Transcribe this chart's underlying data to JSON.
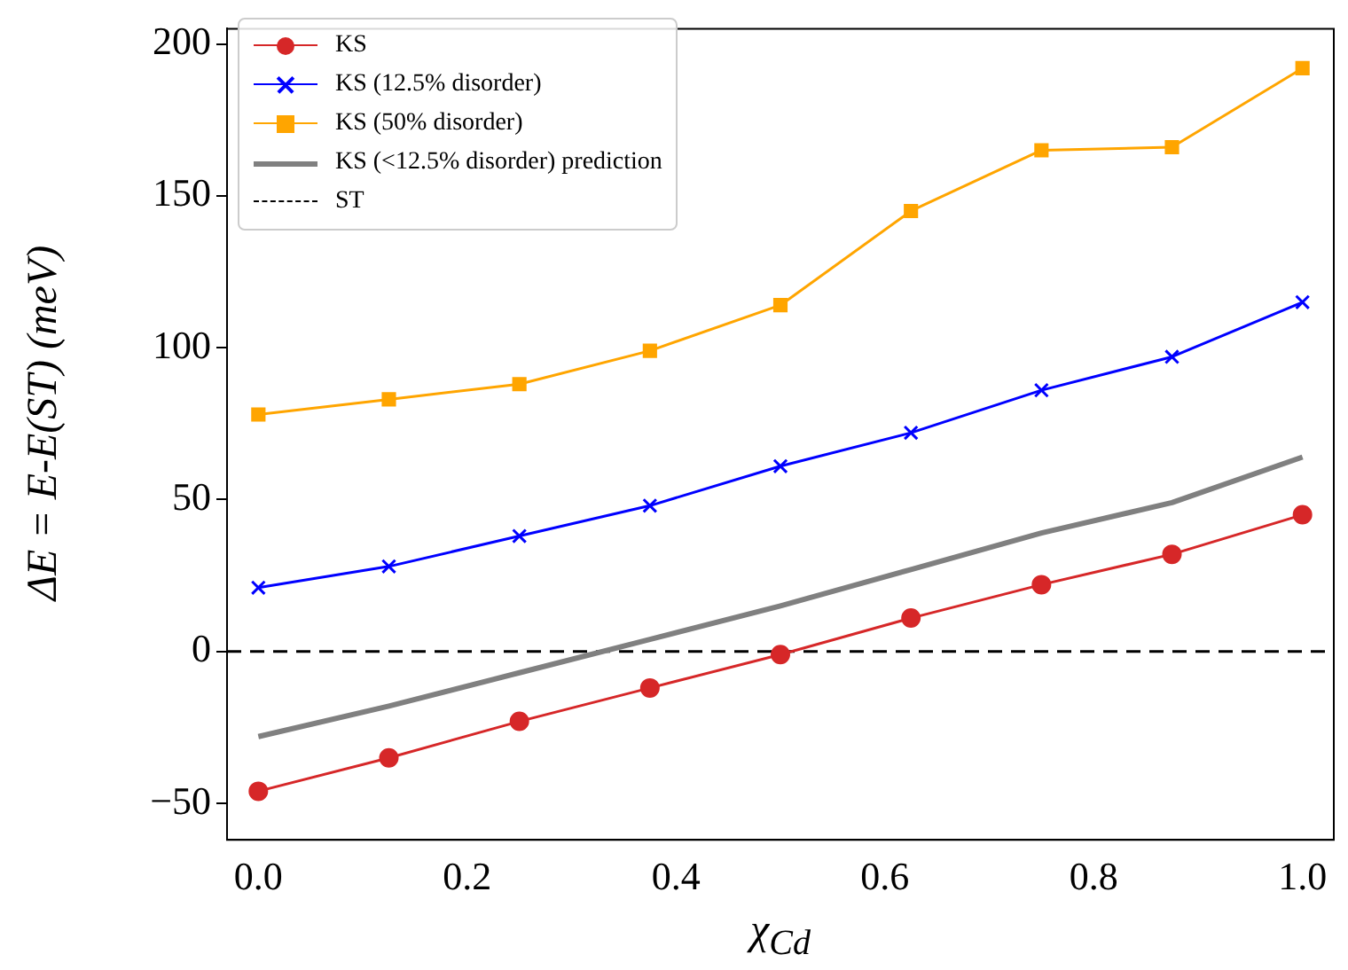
{
  "chart_data": {
    "type": "line",
    "xlabel": "χ$_{Cd}$",
    "ylabel": "ΔE = E-E(ST) (meV)",
    "x": [
      0,
      0.125,
      0.25,
      0.375,
      0.5,
      0.625,
      0.75,
      0.875,
      1.0
    ],
    "series": [
      {
        "name": "KS",
        "color": "#d62728",
        "marker": "circle",
        "values": [
          -46,
          -35,
          -23,
          -12,
          -1,
          11,
          22,
          32,
          45
        ]
      },
      {
        "name": "KS (12.5% disorder)",
        "color": "#0000ff",
        "marker": "cross",
        "values": [
          21,
          28,
          38,
          48,
          61,
          72,
          86,
          97,
          115
        ]
      },
      {
        "name": "KS (50% disorder)",
        "color": "#ffa500",
        "marker": "square",
        "values": [
          78,
          83,
          88,
          99,
          114,
          145,
          165,
          166,
          192
        ]
      },
      {
        "name": "KS (<12.5% disorder) prediction",
        "color": "#808080",
        "marker": "none",
        "values": [
          -28,
          -18,
          -7,
          4,
          15,
          27,
          39,
          49,
          64
        ]
      },
      {
        "name": "ST",
        "color": "#000000",
        "marker": "none",
        "line_style": "dashed",
        "x": [
          -0.03,
          1.03
        ],
        "values": [
          0,
          0
        ]
      }
    ],
    "xlim": [
      -0.03,
      1.03
    ],
    "xticks": [
      {
        "value": 0,
        "label": "0.0"
      },
      {
        "value": 0.2,
        "label": "0.2"
      },
      {
        "value": 0.4,
        "label": "0.4"
      },
      {
        "value": 0.6,
        "label": "0.6"
      },
      {
        "value": 0.8,
        "label": "0.8"
      },
      {
        "value": 1.0,
        "label": "1.0"
      }
    ],
    "ylim": [
      -62,
      205
    ],
    "yticks": [
      {
        "value": -50,
        "label": "−50"
      },
      0,
      50,
      100,
      150,
      200
    ],
    "grid": false,
    "legend": "top left"
  }
}
